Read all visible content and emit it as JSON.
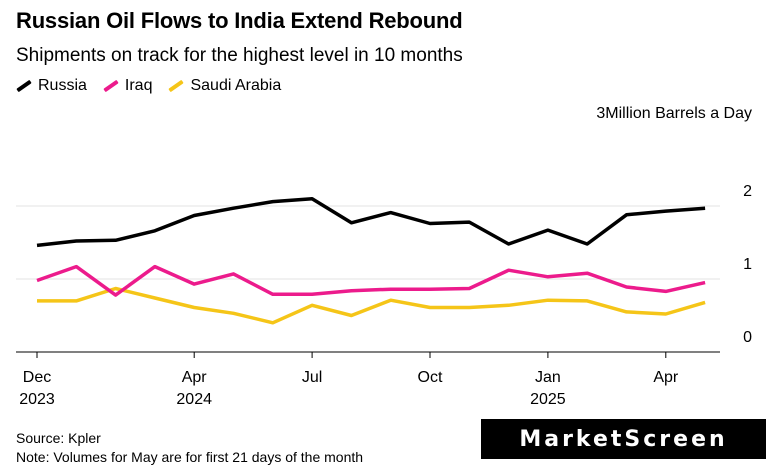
{
  "title": "Russian Oil Flows to India Extend Rebound",
  "subtitle": "Shipments on track for the highest level in 10 months",
  "units_label": "3Million Barrels a Day",
  "footer": {
    "source": "Source: Kpler",
    "note": "Note: Volumes for May are for first 21 days of the month"
  },
  "brand": "MarketScreen",
  "colors": {
    "russia": "#000000",
    "iraq": "#ec1b8c",
    "saudi": "#f5c518",
    "grid": "#e3e3e3",
    "axis": "#000000"
  },
  "chart_data": {
    "type": "line",
    "title": "Russian Oil Flows to India Extend Rebound",
    "ylabel": "Million Barrels a Day",
    "ylim": [
      0,
      3
    ],
    "y_ticks": [
      {
        "value": 2,
        "label": "2"
      },
      {
        "value": 1,
        "label": "1"
      },
      {
        "value": 0,
        "label": "0"
      }
    ],
    "x_ticks": [
      {
        "index": 0,
        "label": "Dec",
        "year": "2023"
      },
      {
        "index": 4,
        "label": "Apr",
        "year": "2024"
      },
      {
        "index": 7,
        "label": "Jul",
        "year": ""
      },
      {
        "index": 10,
        "label": "Oct",
        "year": ""
      },
      {
        "index": 13,
        "label": "Jan",
        "year": "2025"
      },
      {
        "index": 16,
        "label": "Apr",
        "year": ""
      }
    ],
    "x": [
      "Dec 2023",
      "Jan 2024",
      "Feb 2024",
      "Mar 2024",
      "Apr 2024",
      "May 2024",
      "Jun 2024",
      "Jul 2024",
      "Aug 2024",
      "Sep 2024",
      "Oct 2024",
      "Nov 2024",
      "Dec 2024",
      "Jan 2025",
      "Feb 2025",
      "Mar 2025",
      "Apr 2025",
      "May 2025"
    ],
    "series": [
      {
        "name": "Russia",
        "key": "russia",
        "values": [
          1.46,
          1.52,
          1.53,
          1.66,
          1.87,
          1.97,
          2.06,
          2.1,
          1.77,
          1.91,
          1.76,
          1.78,
          1.48,
          1.67,
          1.48,
          1.88,
          1.93,
          1.97
        ]
      },
      {
        "name": "Iraq",
        "key": "iraq",
        "values": [
          0.98,
          1.17,
          0.78,
          1.17,
          0.93,
          1.07,
          0.79,
          0.79,
          0.84,
          0.86,
          0.86,
          0.87,
          1.12,
          1.03,
          1.08,
          0.89,
          0.83,
          0.95
        ]
      },
      {
        "name": "Saudi Arabia",
        "key": "saudi",
        "values": [
          0.7,
          0.7,
          0.87,
          0.74,
          0.61,
          0.53,
          0.4,
          0.64,
          0.5,
          0.71,
          0.61,
          0.61,
          0.64,
          0.71,
          0.7,
          0.55,
          0.52,
          0.68
        ]
      }
    ]
  }
}
